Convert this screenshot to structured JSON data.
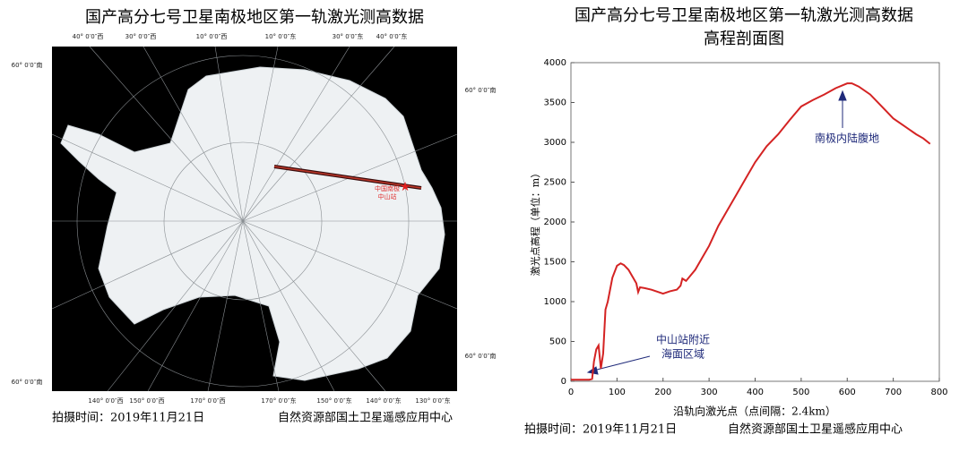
{
  "map": {
    "title": "国产高分七号卫星南极地区第一轨激光测高数据",
    "top_labels": [
      "40° 0′0″西",
      "30° 0′0″西",
      "10° 0′0″西",
      "10° 0′0″东",
      "30° 0′0″东",
      "40° 0′0″东"
    ],
    "bottom_labels": [
      "140° 0′0″西",
      "150° 0′0″西",
      "170° 0′0″西",
      "170° 0′0″东",
      "150° 0′0″东",
      "140° 0′0″东",
      "130° 0′0″东"
    ],
    "left_labels": [
      "60° 0′0″南",
      "60° 0′0″南"
    ],
    "right_labels": [
      "60° 0′0″南",
      "60° 0′0″南"
    ],
    "station_label": [
      "中国南极",
      "中山站"
    ],
    "footer": [
      "拍摄时间：2019年11月21日",
      "自然资源部国土卫星遥感应用中心"
    ]
  },
  "chart_data": {
    "type": "line",
    "title": "国产高分七号卫星南极地区第一轨激光测高数据",
    "subtitle": "高程剖面图",
    "x_label": "沿轨向激光点（点间隔：2.4km）",
    "y_label": "激光点高程（单位：m）",
    "x": [
      0,
      20,
      40,
      46,
      50,
      55,
      60,
      65,
      70,
      75,
      80,
      90,
      100,
      108,
      115,
      125,
      135,
      142,
      146,
      150,
      160,
      175,
      190,
      200,
      215,
      230,
      238,
      242,
      250,
      260,
      270,
      285,
      300,
      320,
      340,
      360,
      380,
      400,
      425,
      450,
      475,
      500,
      525,
      550,
      575,
      600,
      610,
      625,
      650,
      675,
      700,
      725,
      750,
      765,
      780
    ],
    "series": [
      {
        "name": "高程",
        "color": "#d42323",
        "values": [
          20,
          20,
          20,
          30,
          250,
          400,
          450,
          160,
          350,
          900,
          1000,
          1300,
          1450,
          1480,
          1460,
          1400,
          1300,
          1230,
          1120,
          1180,
          1170,
          1150,
          1120,
          1100,
          1130,
          1150,
          1200,
          1290,
          1260,
          1330,
          1400,
          1550,
          1700,
          1950,
          2150,
          2350,
          2550,
          2750,
          2950,
          3100,
          3280,
          3450,
          3530,
          3600,
          3680,
          3740,
          3740,
          3700,
          3600,
          3450,
          3300,
          3200,
          3100,
          3050,
          2980
        ]
      }
    ],
    "xlim": [
      0,
      800
    ],
    "xticks": [
      0,
      100,
      200,
      300,
      400,
      500,
      600,
      700,
      800
    ],
    "ylim": [
      0,
      4000
    ],
    "yticks": [
      0,
      500,
      1000,
      1500,
      2000,
      2500,
      3000,
      3500,
      4000
    ],
    "grid": false,
    "annotations": [
      "南极内陆腹地",
      "中山站附近",
      "海面区域"
    ],
    "footer": [
      "拍摄时间：2019年11月21日",
      "自然资源部国土卫星遥感应用中心"
    ]
  }
}
